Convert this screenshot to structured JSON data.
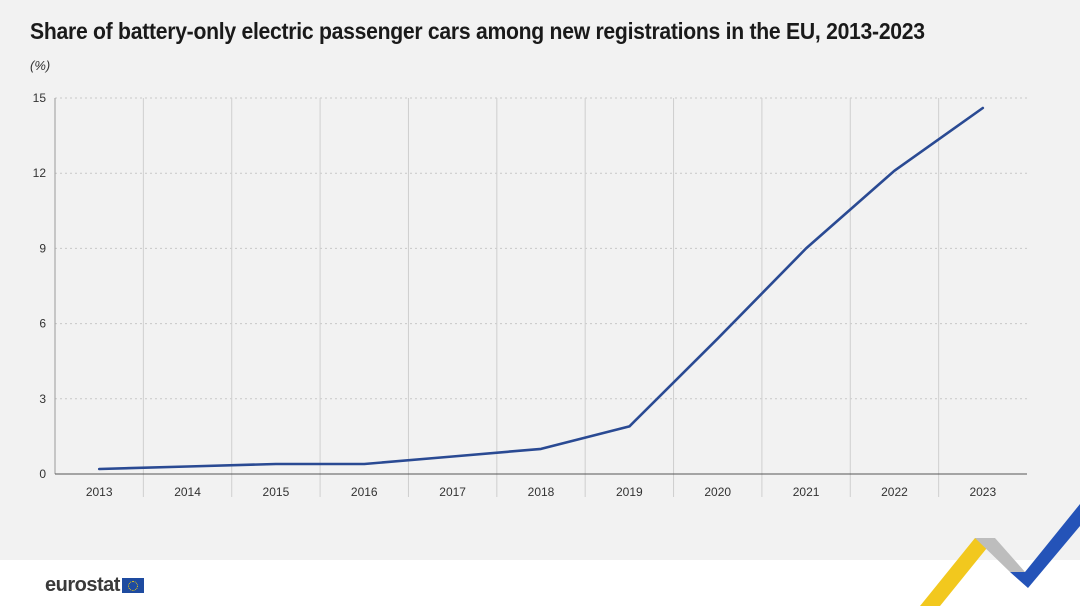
{
  "chart_data": {
    "type": "line",
    "title": "Share of battery-only electric passenger cars among new registrations in the EU, 2013-2023",
    "unit_label": "(%)",
    "x": [
      "2013",
      "2014",
      "2015",
      "2016",
      "2017",
      "2018",
      "2019",
      "2020",
      "2021",
      "2022",
      "2023"
    ],
    "series": [
      {
        "values": [
          0.2,
          0.3,
          0.4,
          0.4,
          0.7,
          1.0,
          1.9,
          5.4,
          9.0,
          12.1,
          14.6
        ],
        "color": "#2a4a93"
      }
    ],
    "yticks": [
      "0",
      "3",
      "6",
      "9",
      "12",
      "15"
    ],
    "ylim": [
      0,
      15
    ],
    "grid": {
      "horizontal": "dotted",
      "vertical": "solid"
    }
  },
  "footer": {
    "logo_text": "eurostat"
  },
  "colors": {
    "background": "#f2f2f2",
    "line": "#2a4a93",
    "accent_yellow": "#f2c81e",
    "accent_blue": "#2453b8"
  }
}
